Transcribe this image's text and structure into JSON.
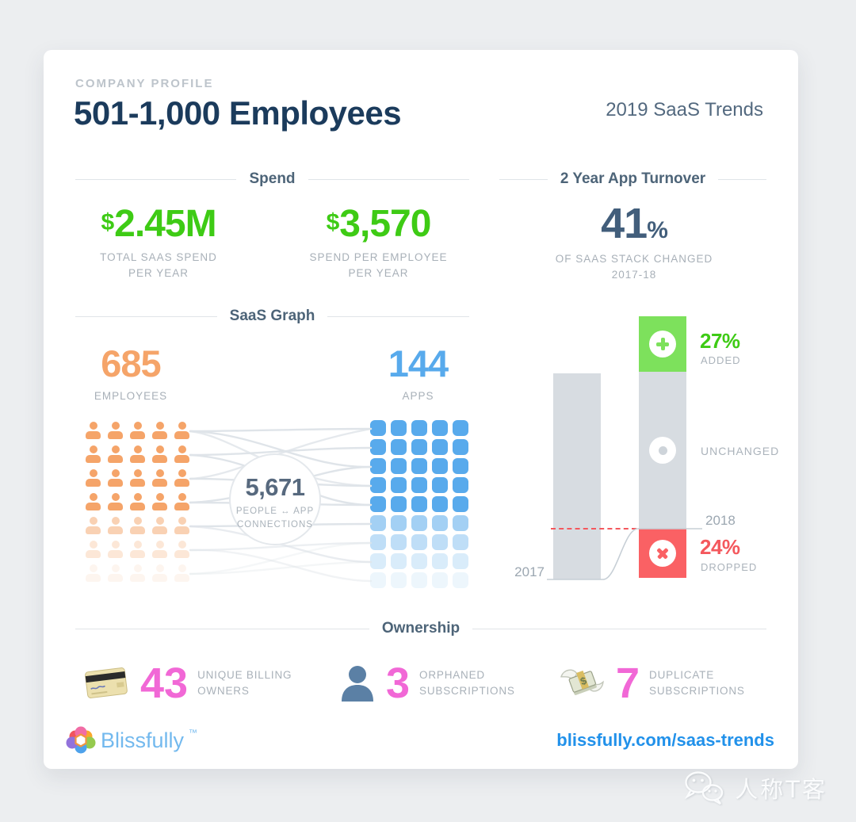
{
  "header": {
    "eyebrow": "COMPANY PROFILE",
    "title": "501-1,000 Employees",
    "report_title": "2019 SaaS Trends"
  },
  "spend": {
    "section_title": "Spend",
    "stats": [
      {
        "currency": "$",
        "value": "2.45M",
        "label_line1": "TOTAL SAAS SPEND",
        "label_line2": "PER YEAR"
      },
      {
        "currency": "$",
        "value": "3,570",
        "label_line1": "SPEND PER EMPLOYEE",
        "label_line2": "PER YEAR"
      }
    ]
  },
  "turnover": {
    "section_title": "2 Year App Turnover",
    "value": "41",
    "unit": "%",
    "label_line1": "OF SAAS STACK CHANGED",
    "label_line2": "2017-18"
  },
  "saas_graph": {
    "section_title": "SaaS Graph",
    "employees": {
      "value": "685",
      "label": "EMPLOYEES",
      "color": "#f5a469",
      "icon_grid": {
        "cols": 5,
        "rows": 7,
        "row_opacity": [
          1,
          1,
          1,
          1,
          0.5,
          0.26,
          0.1
        ]
      }
    },
    "apps": {
      "value": "144",
      "label": "APPS",
      "color": "#58aaec",
      "icon_grid": {
        "cols": 5,
        "rows": 9,
        "row_opacity": [
          1,
          1,
          1,
          1,
          1,
          0.55,
          0.38,
          0.22,
          0.1
        ]
      }
    },
    "connections": {
      "value": "5,671",
      "label_line1": "PEOPLE ↔ APP",
      "label_line2": "CONNECTIONS"
    }
  },
  "chart_data": {
    "type": "bar",
    "title": "2 Year App Turnover",
    "subtitle": "41% of SaaS stack changed 2017-18",
    "categories": [
      "2017",
      "2018"
    ],
    "stacked": true,
    "series": [
      {
        "name": "ADDED",
        "values": [
          0,
          27
        ],
        "color": "#7de15c"
      },
      {
        "name": "UNCHANGED",
        "values": [
          100,
          76
        ],
        "color": "#d7dce1"
      },
      {
        "name": "DROPPED",
        "values": [
          0,
          24
        ],
        "color": "#fa6164"
      }
    ],
    "annotations": {
      "added_pct": "27%",
      "added_label": "ADDED",
      "unchanged_label": "UNCHANGED",
      "dropped_pct": "24%",
      "dropped_label": "DROPPED"
    },
    "ylabel": "",
    "xlabel": "",
    "grid": false,
    "legend_position": "right-annotations"
  },
  "ownership": {
    "section_title": "Ownership",
    "accent_color": "#f168d6",
    "items": [
      {
        "icon": "credit-card-icon",
        "value": "43",
        "label_line1": "UNIQUE BILLING",
        "label_line2": "OWNERS"
      },
      {
        "icon": "person-icon",
        "value": "3",
        "label_line1": "ORPHANED",
        "label_line2": "SUBSCRIPTIONS"
      },
      {
        "icon": "money-with-wings-icon",
        "value": "7",
        "label_line1": "DUPLICATE",
        "label_line2": "SUBSCRIPTIONS"
      }
    ]
  },
  "footer": {
    "brand": "Blissfully",
    "trademark": "™",
    "link": "blissfully.com/saas-trends"
  },
  "watermark": {
    "text": "人称T客"
  },
  "colors": {
    "green": "#3ecb15",
    "orange": "#f5a469",
    "blue": "#58aaec",
    "pink": "#f168d6",
    "red": "#fa6164",
    "navy": "#1b3b5c",
    "slate": "#425e7b",
    "label_gray": "#a8b0b8",
    "bar_gray": "#d7dce1",
    "link_blue": "#2191ea",
    "background": "#eceef0"
  }
}
